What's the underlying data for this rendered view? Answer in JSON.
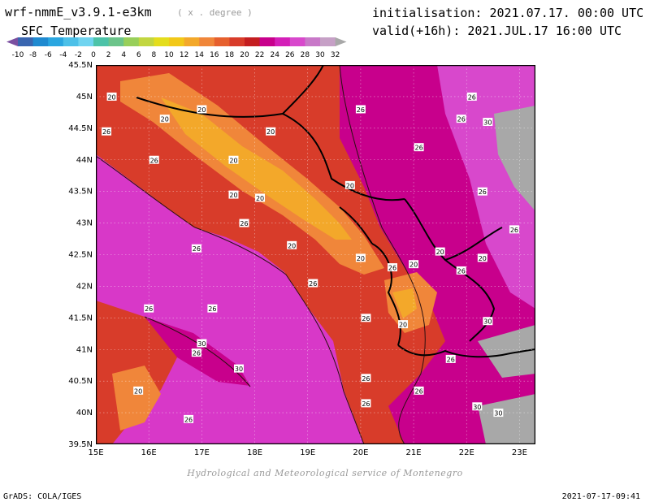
{
  "header": {
    "model_title": "wrf-nmmE_v3.9.1-e3km",
    "model_subtitle": "( x . degree )",
    "field_title": "SFC Temperature",
    "init_line": "initialisation: 2021.07.17. 00:00 UTC",
    "valid_line": "valid(+16h): 2021.JUL.17 16:00 UTC"
  },
  "legend": {
    "ticks": [
      "-10",
      "-8",
      "-6",
      "-4",
      "-2",
      "0",
      "2",
      "4",
      "6",
      "8",
      "10",
      "12",
      "14",
      "16",
      "18",
      "20",
      "22",
      "24",
      "26",
      "28",
      "30",
      "32"
    ],
    "colors": [
      "#7a4fa0",
      "#3a66b0",
      "#1f8ad0",
      "#2aa6e0",
      "#4cc0e8",
      "#70d4f0",
      "#4dc3a8",
      "#6cc48a",
      "#98cf5a",
      "#c2d640",
      "#e4dd1c",
      "#f2c818",
      "#f3a82a",
      "#f0863a",
      "#e6602e",
      "#d83c2a",
      "#c41e20",
      "#c8008c",
      "#d41fb8",
      "#d848cc",
      "#c878c8",
      "#c6a0c6",
      "#a8a8a8"
    ]
  },
  "map": {
    "lat_labels": [
      "45.5N",
      "45N",
      "44.5N",
      "44N",
      "43.5N",
      "43N",
      "42.5N",
      "42N",
      "41.5N",
      "41N",
      "40.5N",
      "40N",
      "39.5N"
    ],
    "lon_labels": [
      "15E",
      "16E",
      "17E",
      "18E",
      "19E",
      "20E",
      "21E",
      "22E",
      "23E"
    ],
    "contour_labels": [
      {
        "text": "20",
        "lon": 15.3,
        "lat": 45.0
      },
      {
        "text": "20",
        "lon": 16.3,
        "lat": 44.65
      },
      {
        "text": "20",
        "lon": 17.0,
        "lat": 44.8
      },
      {
        "text": "26",
        "lon": 20.0,
        "lat": 44.8
      },
      {
        "text": "26",
        "lon": 22.1,
        "lat": 45.0
      },
      {
        "text": "26",
        "lon": 21.9,
        "lat": 44.65
      },
      {
        "text": "30",
        "lon": 22.4,
        "lat": 44.6
      },
      {
        "text": "26",
        "lon": 15.2,
        "lat": 44.45
      },
      {
        "text": "20",
        "lon": 18.3,
        "lat": 44.45
      },
      {
        "text": "26",
        "lon": 16.1,
        "lat": 44.0
      },
      {
        "text": "20",
        "lon": 17.6,
        "lat": 44.0
      },
      {
        "text": "26",
        "lon": 21.1,
        "lat": 44.2
      },
      {
        "text": "20",
        "lon": 19.8,
        "lat": 43.6
      },
      {
        "text": "20",
        "lon": 17.6,
        "lat": 43.45
      },
      {
        "text": "20",
        "lon": 18.1,
        "lat": 43.4
      },
      {
        "text": "26",
        "lon": 22.3,
        "lat": 43.5
      },
      {
        "text": "26",
        "lon": 17.8,
        "lat": 43.0
      },
      {
        "text": "26",
        "lon": 22.9,
        "lat": 42.9
      },
      {
        "text": "26",
        "lon": 16.9,
        "lat": 42.6
      },
      {
        "text": "20",
        "lon": 18.7,
        "lat": 42.65
      },
      {
        "text": "20",
        "lon": 20.0,
        "lat": 42.45
      },
      {
        "text": "26",
        "lon": 20.6,
        "lat": 42.3
      },
      {
        "text": "20",
        "lon": 21.0,
        "lat": 42.35
      },
      {
        "text": "20",
        "lon": 21.5,
        "lat": 42.55
      },
      {
        "text": "26",
        "lon": 21.9,
        "lat": 42.25
      },
      {
        "text": "20",
        "lon": 22.3,
        "lat": 42.45
      },
      {
        "text": "26",
        "lon": 19.1,
        "lat": 42.05
      },
      {
        "text": "26",
        "lon": 16.0,
        "lat": 41.65
      },
      {
        "text": "26",
        "lon": 17.2,
        "lat": 41.65
      },
      {
        "text": "26",
        "lon": 20.1,
        "lat": 41.5
      },
      {
        "text": "20",
        "lon": 20.8,
        "lat": 41.4
      },
      {
        "text": "30",
        "lon": 22.4,
        "lat": 41.45
      },
      {
        "text": "30",
        "lon": 17.0,
        "lat": 41.1
      },
      {
        "text": "26",
        "lon": 16.9,
        "lat": 40.95
      },
      {
        "text": "26",
        "lon": 21.7,
        "lat": 40.85
      },
      {
        "text": "30",
        "lon": 17.7,
        "lat": 40.7
      },
      {
        "text": "26",
        "lon": 20.1,
        "lat": 40.55
      },
      {
        "text": "20",
        "lon": 15.8,
        "lat": 40.35
      },
      {
        "text": "26",
        "lon": 21.1,
        "lat": 40.35
      },
      {
        "text": "26",
        "lon": 20.1,
        "lat": 40.15
      },
      {
        "text": "30",
        "lon": 22.2,
        "lat": 40.1
      },
      {
        "text": "30",
        "lon": 22.6,
        "lat": 40.0
      },
      {
        "text": "26",
        "lon": 16.75,
        "lat": 39.9
      }
    ]
  },
  "footer": {
    "credit": "Hydrological and Meteorological service of Montenegro",
    "grads": "GrADS: COLA/IGES",
    "timestamp": "2021-07-17-09:41"
  }
}
